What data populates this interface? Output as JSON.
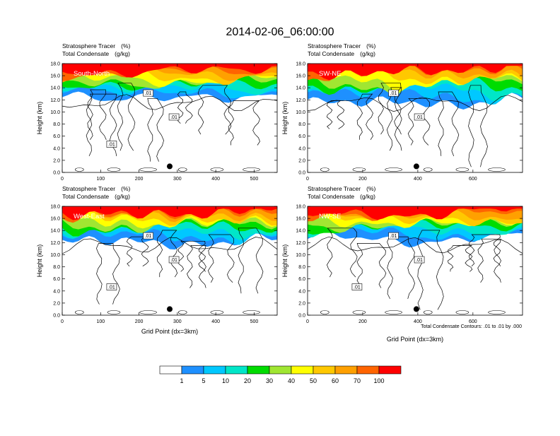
{
  "chart_data": {
    "type": "contour",
    "title": "2014-02-06_06:00:00",
    "fill_field": "Stratosphere Tracer",
    "fill_units": "(%)",
    "line_field": "Total Condensate",
    "line_units": "(g/kg)",
    "ylabel": "Height (km)",
    "xlabel": "Grid Point (dx=3km)",
    "contour_note": "Total Condensate Contours: .01 to .01 by .000",
    "colorbar": {
      "levels": [
        "1",
        "5",
        "10",
        "20",
        "30",
        "40",
        "50",
        "60",
        "70",
        "100"
      ],
      "colors": [
        "#ffffff",
        "#1e90ff",
        "#00c8ff",
        "#00e6c8",
        "#00dc00",
        "#a0e632",
        "#ffff00",
        "#ffc800",
        "#ffa000",
        "#ff6400",
        "#ff0000"
      ]
    },
    "panels": [
      {
        "name": "South-North",
        "xlim": [
          0,
          560
        ],
        "xticks": [
          "0",
          "100",
          "200",
          "300",
          "400",
          "500"
        ],
        "xtick_values": [
          0,
          100,
          200,
          300,
          400,
          500
        ],
        "ylim": [
          0,
          18
        ],
        "yticks": [
          "0.0",
          "2.0",
          "4.0",
          "6.0",
          "8.0",
          "10.0",
          "12.0",
          "14.0",
          "16.0",
          "18.0"
        ],
        "contour_labels": [
          ".01",
          ".01",
          ".01"
        ],
        "marker_x": 280,
        "marker_y": 1.0
      },
      {
        "name": "SW-NE",
        "xlim": [
          0,
          780
        ],
        "xticks": [
          "0",
          "200",
          "400",
          "600"
        ],
        "xtick_values": [
          0,
          200,
          400,
          600
        ],
        "ylim": [
          0,
          18
        ],
        "yticks": [
          "0.0",
          "2.0",
          "4.0",
          "6.0",
          "8.0",
          "10.0",
          "12.0",
          "14.0",
          "16.0",
          "18.0"
        ],
        "contour_labels": [
          ".01",
          ".01"
        ],
        "marker_x": 395,
        "marker_y": 1.0
      },
      {
        "name": "West-East",
        "xlim": [
          0,
          560
        ],
        "xticks": [
          "0",
          "100",
          "200",
          "300",
          "400",
          "500"
        ],
        "xtick_values": [
          0,
          100,
          200,
          300,
          400,
          500
        ],
        "ylim": [
          0,
          18
        ],
        "yticks": [
          "0.0",
          "2.0",
          "4.0",
          "6.0",
          "8.0",
          "10.0",
          "12.0",
          "14.0",
          "16.0",
          "18.0"
        ],
        "contour_labels": [
          ".01",
          ".01",
          ".01"
        ],
        "marker_x": 280,
        "marker_y": 1.0
      },
      {
        "name": "NW-SE",
        "xlim": [
          0,
          780
        ],
        "xticks": [
          "0",
          "200",
          "400",
          "600"
        ],
        "xtick_values": [
          0,
          200,
          400,
          600
        ],
        "ylim": [
          0,
          18
        ],
        "yticks": [
          "0.0",
          "2.0",
          "4.0",
          "6.0",
          "8.0",
          "10.0",
          "12.0",
          "14.0",
          "16.0",
          "18.0"
        ],
        "contour_labels": [
          ".01",
          ".01",
          ".01"
        ],
        "marker_x": 395,
        "marker_y": 1.0
      }
    ]
  }
}
